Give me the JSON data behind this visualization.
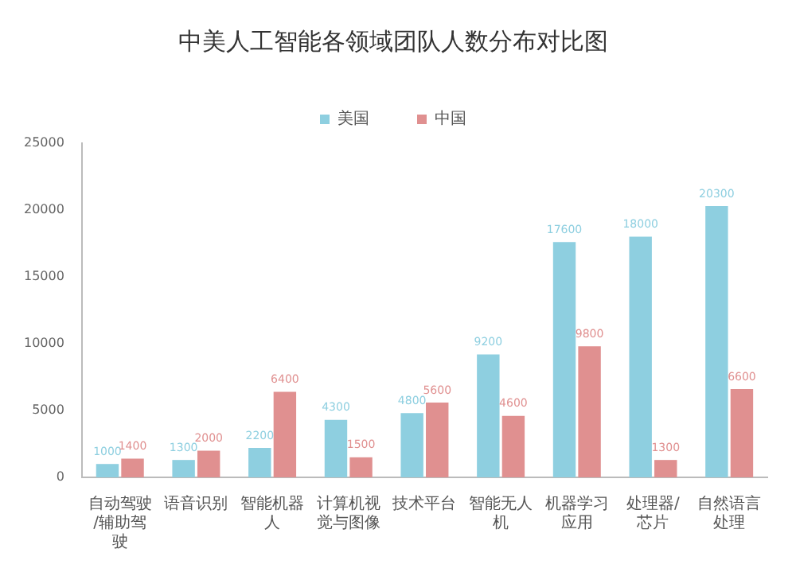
{
  "chart_data": {
    "type": "bar",
    "title": "中美人工智能各领域团队人数分布对比图",
    "categories": [
      "自动驾驶/辅助驾驶",
      "语音识别",
      "智能机器人",
      "计算机视觉与图像",
      "技术平台",
      "智能无人机",
      "机器学习应用",
      "处理器/芯片",
      "自然语言处理"
    ],
    "series": [
      {
        "name": "美国",
        "color": "#8ecfe0",
        "values": [
          1000,
          1300,
          2200,
          4300,
          4800,
          9200,
          17600,
          18000,
          20300
        ]
      },
      {
        "name": "中国",
        "color": "#e09090",
        "values": [
          1400,
          2000,
          6400,
          1500,
          5600,
          4600,
          9800,
          1300,
          6600
        ]
      }
    ],
    "ylim": [
      0,
      25000
    ],
    "yticks": [
      0,
      5000,
      10000,
      15000,
      20000,
      25000
    ],
    "grid": false,
    "legend": "top",
    "data_labels": true
  }
}
